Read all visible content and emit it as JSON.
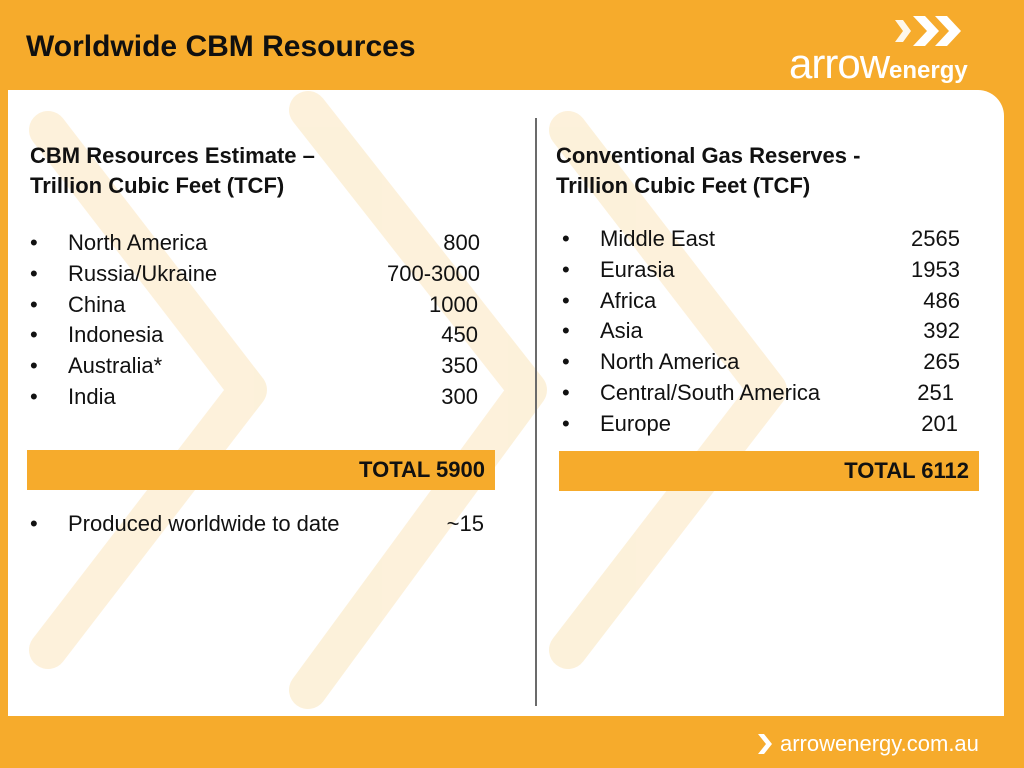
{
  "header": {
    "title": "Worldwide CBM Resources",
    "logo": {
      "icon": "double-chevron-icon",
      "word_arrow": "arrow",
      "word_energy": "energy"
    }
  },
  "colors": {
    "accent": "#f6ab2c",
    "panel": "#ffffff",
    "text": "#111111",
    "divider": "#6b6b6b"
  },
  "left": {
    "heading_line1": "CBM Resources Estimate –",
    "heading_line2": "Trillion Cubic Feet (TCF)",
    "items": [
      {
        "bullet": "•",
        "name": "North America",
        "value": "800"
      },
      {
        "bullet": "•",
        "name": "Russia/Ukraine",
        "value": "700-3000"
      },
      {
        "bullet": "•",
        "name": "China",
        "value": "1000"
      },
      {
        "bullet": "•",
        "name": "Indonesia",
        "value": "450"
      },
      {
        "bullet": "•",
        "name": "Australia*",
        "value": "350"
      },
      {
        "bullet": "•",
        "name": "India",
        "value": "300"
      }
    ],
    "total": "TOTAL 5900",
    "extra": {
      "bullet": "•",
      "name": "Produced worldwide to date",
      "value": "~15"
    }
  },
  "right": {
    "heading_line1": "Conventional Gas Reserves -",
    "heading_line2": "Trillion Cubic Feet (TCF)",
    "items": [
      {
        "bullet": "•",
        "name": "Middle East",
        "value": "2565"
      },
      {
        "bullet": "•",
        "name": "Eurasia",
        "value": "1953"
      },
      {
        "bullet": "•",
        "name": "Africa",
        "value": "486"
      },
      {
        "bullet": "•",
        "name": "Asia",
        "value": "392"
      },
      {
        "bullet": "•",
        "name": "North America",
        "value": "265"
      },
      {
        "bullet": "•",
        "name": "Central/South America",
        "value": "251"
      },
      {
        "bullet": "•",
        "name": "Europe",
        "value": "201"
      }
    ],
    "total": "TOTAL 6112"
  },
  "footer": {
    "icon": "chevron-right-icon",
    "url": "arrowenergy.com.au"
  }
}
